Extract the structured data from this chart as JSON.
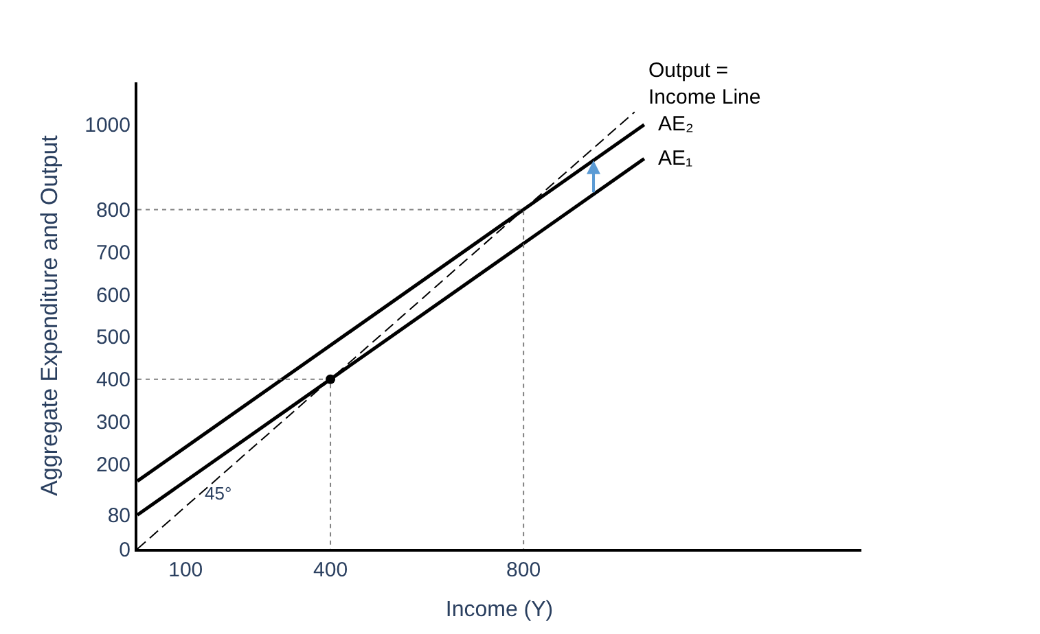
{
  "chart_data": {
    "type": "line",
    "xlabel": "Income (Y)",
    "ylabel": "Aggregate Expenditure and Output",
    "xlim": [
      0,
      1500
    ],
    "ylim": [
      0,
      1100
    ],
    "xticks": [
      100,
      400,
      800
    ],
    "yticks": [
      0,
      80,
      200,
      300,
      400,
      500,
      600,
      700,
      800,
      1000
    ],
    "legend": false,
    "marker": "none",
    "series": [
      {
        "name": "Output = Income Line",
        "color": "#000000",
        "line_style": "dashed",
        "x": [
          0,
          1030
        ],
        "values": [
          0,
          1030
        ]
      },
      {
        "name": "AE₁",
        "color": "#000000",
        "line_style": "solid",
        "x": [
          0,
          1050
        ],
        "values": [
          80,
          920
        ]
      },
      {
        "name": "AE₂",
        "color": "#000000",
        "line_style": "solid",
        "x": [
          0,
          1050
        ],
        "values": [
          160,
          1000
        ]
      },
      {
        "color": "#808080",
        "line_style": "dotted",
        "x": [
          0,
          400,
          400
        ],
        "values": [
          400,
          400,
          0
        ]
      },
      {
        "color": "#808080",
        "line_style": "dotted",
        "x": [
          0,
          800,
          800
        ],
        "values": [
          800,
          800,
          0
        ]
      },
      {
        "type": "scatter",
        "marker": "circle",
        "color": "#000000",
        "x": [
          400
        ],
        "values": [
          400
        ]
      }
    ],
    "annotations": [
      "45°"
    ]
  }
}
